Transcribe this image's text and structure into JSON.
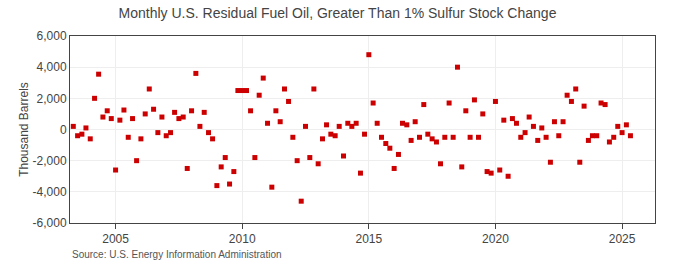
{
  "chart_data": {
    "type": "scatter",
    "title": "Monthly U.S. Residual Fuel Oil, Greater Than 1% Sulfur Stock Change",
    "y_label": "Thousand Barrels",
    "annotations": [
      "Source: U.S. Energy Information Administration"
    ],
    "color": "#cc0000",
    "marker": "square",
    "grid": true,
    "xlim": [
      2003.2,
      2026.3
    ],
    "xticks": [
      2005,
      2010,
      2015,
      2020,
      2025
    ],
    "ylim": [
      -6000,
      6000
    ],
    "yticks": [
      {
        "value": -6000,
        "label": "-6,000"
      },
      {
        "value": -4000,
        "label": "-4,000"
      },
      {
        "value": -2000,
        "label": "-2,000"
      },
      0,
      {
        "value": 2000,
        "label": "2,000"
      },
      {
        "value": 4000,
        "label": "4,000"
      },
      {
        "value": 6000,
        "label": "6,000"
      }
    ],
    "x": [
      2003.33,
      2003.5,
      2003.67,
      2003.83,
      2004.0,
      2004.17,
      2004.33,
      2004.5,
      2004.67,
      2004.83,
      2005.0,
      2005.17,
      2005.33,
      2005.5,
      2005.67,
      2005.83,
      2006.0,
      2006.17,
      2006.33,
      2006.5,
      2006.67,
      2006.83,
      2007.0,
      2007.17,
      2007.33,
      2007.5,
      2007.67,
      2007.83,
      2008.0,
      2008.17,
      2008.33,
      2008.5,
      2008.67,
      2008.83,
      2009.0,
      2009.17,
      2009.33,
      2009.5,
      2009.67,
      2009.83,
      2010.0,
      2010.17,
      2010.33,
      2010.5,
      2010.67,
      2010.83,
      2011.0,
      2011.17,
      2011.33,
      2011.5,
      2011.67,
      2011.83,
      2012.0,
      2012.17,
      2012.33,
      2012.5,
      2012.67,
      2012.83,
      2013.0,
      2013.17,
      2013.33,
      2013.5,
      2013.67,
      2013.83,
      2014.0,
      2014.17,
      2014.33,
      2014.5,
      2014.67,
      2014.83,
      2015.0,
      2015.17,
      2015.33,
      2015.5,
      2015.67,
      2015.83,
      2016.0,
      2016.17,
      2016.33,
      2016.5,
      2016.67,
      2016.83,
      2017.0,
      2017.17,
      2017.33,
      2017.5,
      2017.67,
      2017.83,
      2018.0,
      2018.17,
      2018.33,
      2018.5,
      2018.67,
      2018.83,
      2019.0,
      2019.17,
      2019.33,
      2019.5,
      2019.67,
      2019.83,
      2020.0,
      2020.17,
      2020.33,
      2020.5,
      2020.67,
      2020.83,
      2021.0,
      2021.17,
      2021.33,
      2021.5,
      2021.67,
      2021.83,
      2022.0,
      2022.17,
      2022.33,
      2022.5,
      2022.67,
      2022.83,
      2023.0,
      2023.17,
      2023.33,
      2023.5,
      2023.67,
      2023.83,
      2024.0,
      2024.17,
      2024.33,
      2024.5,
      2024.67,
      2024.83,
      2025.0,
      2025.17,
      2025.33
    ],
    "values": [
      200,
      -400,
      -300,
      100,
      -600,
      2000,
      3550,
      800,
      1200,
      700,
      -2600,
      600,
      1250,
      -500,
      700,
      -2000,
      -600,
      1000,
      2600,
      1300,
      -200,
      800,
      -400,
      -200,
      1100,
      700,
      800,
      -2500,
      1200,
      3600,
      200,
      1100,
      -200,
      -600,
      -3600,
      -2400,
      -1800,
      -3500,
      -2700,
      2500,
      2500,
      2500,
      1200,
      -1800,
      2200,
      3300,
      400,
      -3700,
      1200,
      500,
      2600,
      1800,
      -500,
      -2000,
      -4600,
      200,
      -1800,
      2600,
      -2200,
      -600,
      300,
      -300,
      -400,
      200,
      -1700,
      400,
      200,
      400,
      -2800,
      -300,
      4800,
      1700,
      400,
      -500,
      -900,
      -1200,
      -2500,
      -1600,
      400,
      300,
      -700,
      500,
      -500,
      1600,
      -300,
      -600,
      -800,
      -2200,
      -500,
      1700,
      -500,
      4000,
      -2400,
      1200,
      -500,
      1900,
      -500,
      1000,
      -2700,
      -2800,
      1800,
      -2600,
      600,
      -3000,
      700,
      400,
      -500,
      -200,
      800,
      200,
      -700,
      100,
      -500,
      -2100,
      500,
      -400,
      500,
      2200,
      1800,
      2600,
      -2100,
      1500,
      -700,
      -400,
      -400,
      1700,
      1600,
      -800,
      -500,
      200,
      -200,
      300,
      -400
    ]
  }
}
